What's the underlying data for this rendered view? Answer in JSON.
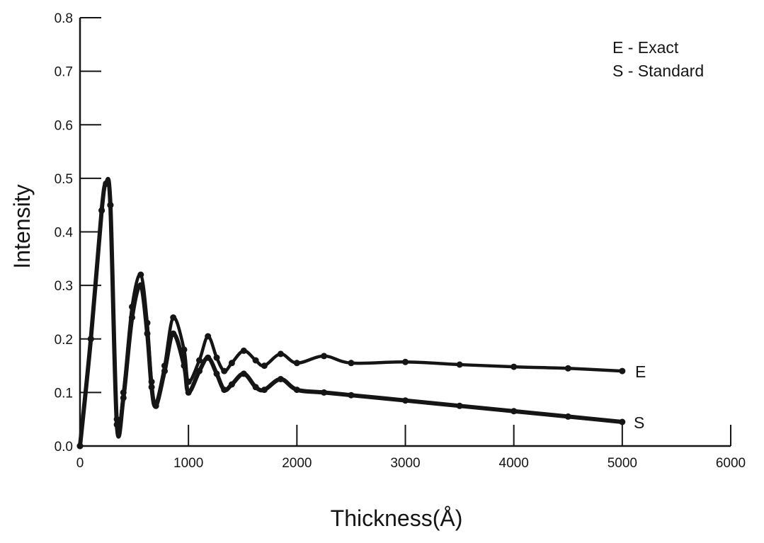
{
  "chart_data": {
    "type": "line",
    "title": "",
    "xlabel": "Thickness(Å)",
    "ylabel": "Intensity",
    "xlim": [
      0,
      6000
    ],
    "ylim": [
      0,
      0.8
    ],
    "x_ticks": [
      0,
      1000,
      2000,
      3000,
      4000,
      5000,
      6000
    ],
    "x_tick_labels": [
      "0",
      "1000",
      "2000",
      "3000",
      "4000",
      "5000",
      "6000"
    ],
    "y_ticks": [
      0,
      0.1,
      0.2,
      0.3,
      0.4,
      0.5,
      0.6,
      0.7,
      0.8
    ],
    "y_tick_labels": [
      "0.0",
      "0.1",
      "0.2",
      "0.3",
      "0.4",
      "0.5",
      "0.6",
      "0.7",
      "0.8"
    ],
    "grid": false,
    "legend": {
      "placement": "top-right",
      "entries": [
        "E - Exact",
        "S - Standard"
      ]
    },
    "series": [
      {
        "name": "E",
        "label": "E",
        "x": [
          0,
          100,
          200,
          240,
          280,
          340,
          400,
          480,
          560,
          620,
          660,
          700,
          780,
          860,
          960,
          1000,
          1100,
          1180,
          1260,
          1330,
          1400,
          1510,
          1620,
          1700,
          1850,
          2000,
          2250,
          2500,
          3000,
          3500,
          4000,
          4500,
          5000
        ],
        "y": [
          0.0,
          0.2,
          0.44,
          0.49,
          0.45,
          0.05,
          0.1,
          0.26,
          0.32,
          0.23,
          0.12,
          0.08,
          0.15,
          0.24,
          0.18,
          0.12,
          0.16,
          0.205,
          0.165,
          0.14,
          0.155,
          0.178,
          0.16,
          0.15,
          0.172,
          0.155,
          0.168,
          0.155,
          0.157,
          0.152,
          0.148,
          0.145,
          0.14
        ]
      },
      {
        "name": "S",
        "label": "S",
        "x": [
          0,
          100,
          200,
          240,
          280,
          340,
          400,
          480,
          560,
          620,
          660,
          700,
          780,
          860,
          960,
          1000,
          1100,
          1180,
          1260,
          1330,
          1400,
          1510,
          1620,
          1700,
          1850,
          2000,
          2250,
          2500,
          3000,
          3500,
          4000,
          4500,
          5000
        ],
        "y": [
          0.0,
          0.2,
          0.44,
          0.49,
          0.45,
          0.04,
          0.09,
          0.24,
          0.3,
          0.21,
          0.11,
          0.075,
          0.14,
          0.21,
          0.15,
          0.1,
          0.14,
          0.165,
          0.135,
          0.105,
          0.115,
          0.135,
          0.11,
          0.105,
          0.125,
          0.105,
          0.1,
          0.095,
          0.085,
          0.075,
          0.065,
          0.055,
          0.045
        ]
      }
    ]
  }
}
